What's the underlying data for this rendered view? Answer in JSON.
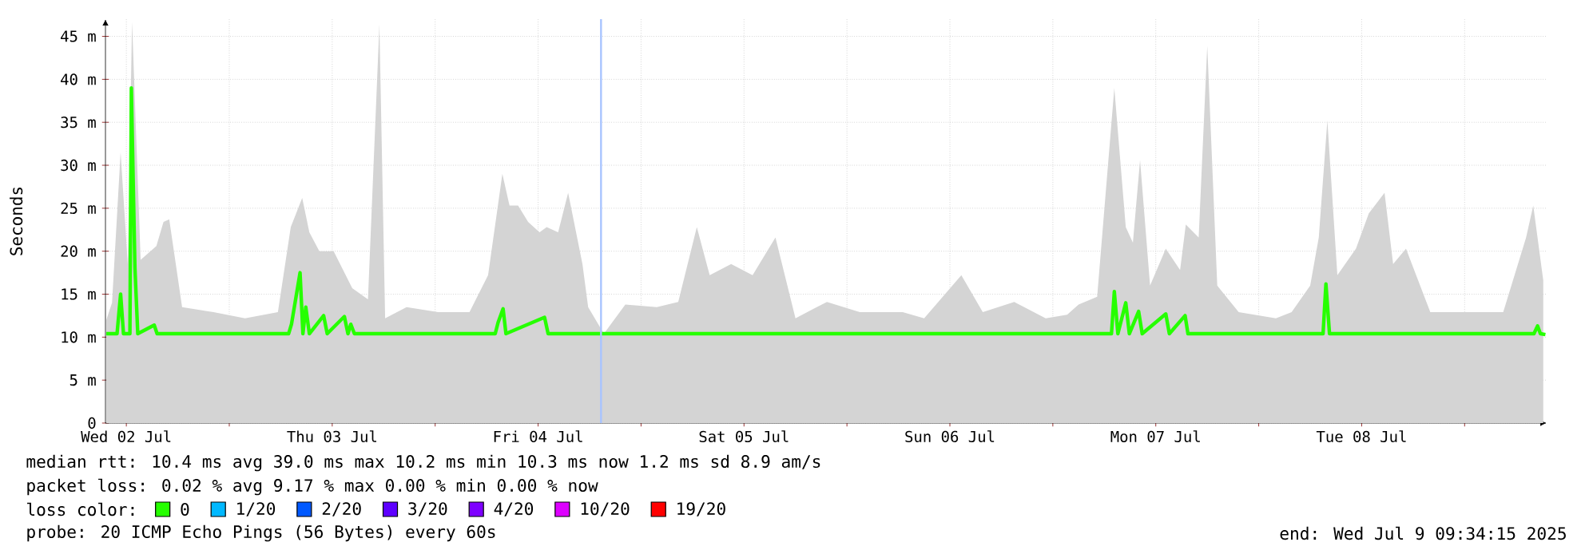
{
  "chart_data": {
    "type": "line",
    "ylabel": "Seconds",
    "legend_title": "loss color:",
    "legend": "bottom",
    "grid": true,
    "xlim": [
      "2025-07-02T09:34",
      "2025-07-09T09:34"
    ],
    "xticks": [
      {
        "value": "2025-07-02T12:00",
        "label": "Wed 02 Jul"
      },
      {
        "value": "2025-07-03T00:00",
        "label": null
      },
      {
        "value": "2025-07-03T12:00",
        "label": "Thu 03 Jul"
      },
      {
        "value": "2025-07-04T00:00",
        "label": null
      },
      {
        "value": "2025-07-04T12:00",
        "label": "Fri 04 Jul"
      },
      {
        "value": "2025-07-05T00:00",
        "label": null
      },
      {
        "value": "2025-07-05T12:00",
        "label": "Sat 05 Jul"
      },
      {
        "value": "2025-07-06T00:00",
        "label": null
      },
      {
        "value": "2025-07-06T12:00",
        "label": "Sun 06 Jul"
      },
      {
        "value": "2025-07-07T00:00",
        "label": null
      },
      {
        "value": "2025-07-07T12:00",
        "label": "Mon 07 Jul"
      },
      {
        "value": "2025-07-08T00:00",
        "label": null
      },
      {
        "value": "2025-07-08T12:00",
        "label": "Tue 08 Jul"
      },
      {
        "value": "2025-07-09T00:00",
        "label": null
      }
    ],
    "ylim": [
      0,
      47
    ],
    "yticks": [
      0,
      {
        "value": 5,
        "label": "5 m"
      },
      {
        "value": 10,
        "label": "10 m"
      },
      {
        "value": 15,
        "label": "15 m"
      },
      {
        "value": 20,
        "label": "20 m"
      },
      {
        "value": 25,
        "label": "25 m"
      },
      {
        "value": 30,
        "label": "30 m"
      },
      {
        "value": 35,
        "label": "35 m"
      },
      {
        "value": 40,
        "label": "40 m"
      },
      {
        "value": 45,
        "label": "45 m"
      }
    ],
    "ref_lines": [
      {
        "axis": "x",
        "value": "2025-07-04T19:20",
        "color": "#a8c4ff"
      }
    ],
    "series": [
      {
        "type": "area",
        "color": "#d4d4d4",
        "x": [
          "2025-07-02T09:40",
          "2025-07-02T10:20",
          "2025-07-02T11:20",
          "2025-07-02T12:10",
          "2025-07-02T12:40",
          "2025-07-02T13:40",
          "2025-07-02T15:30",
          "2025-07-02T16:20",
          "2025-07-02T17:00",
          "2025-07-02T18:30",
          "2025-07-02T22:10",
          "2025-07-03T01:50",
          "2025-07-03T05:40",
          "2025-07-03T07:10",
          "2025-07-03T08:30",
          "2025-07-03T09:20",
          "2025-07-03T10:30",
          "2025-07-03T12:10",
          "2025-07-03T14:20",
          "2025-07-03T16:10",
          "2025-07-03T17:30",
          "2025-07-03T18:10",
          "2025-07-03T20:40",
          "2025-07-04T00:20",
          "2025-07-04T04:00",
          "2025-07-04T06:10",
          "2025-07-04T07:50",
          "2025-07-04T08:40",
          "2025-07-04T09:40",
          "2025-07-04T10:50",
          "2025-07-04T12:10",
          "2025-07-04T13:00",
          "2025-07-04T14:20",
          "2025-07-04T15:30",
          "2025-07-04T17:10",
          "2025-07-04T17:50",
          "2025-07-04T19:40",
          "2025-07-04T22:10",
          "2025-07-05T01:50",
          "2025-07-05T04:20",
          "2025-07-05T06:30",
          "2025-07-05T08:00",
          "2025-07-05T10:30",
          "2025-07-05T13:00",
          "2025-07-05T15:40",
          "2025-07-05T18:00",
          "2025-07-05T21:40",
          "2025-07-06T01:30",
          "2025-07-06T06:30",
          "2025-07-06T09:00",
          "2025-07-06T13:20",
          "2025-07-06T15:50",
          "2025-07-06T19:30",
          "2025-07-06T23:10",
          "2025-07-07T01:40",
          "2025-07-07T03:00",
          "2025-07-07T05:10",
          "2025-07-07T07:10",
          "2025-07-07T08:30",
          "2025-07-07T09:20",
          "2025-07-07T10:10",
          "2025-07-07T11:20",
          "2025-07-07T13:10",
          "2025-07-07T14:50",
          "2025-07-07T15:30",
          "2025-07-07T17:00",
          "2025-07-07T18:00",
          "2025-07-07T19:10",
          "2025-07-07T21:40",
          "2025-07-08T02:00",
          "2025-07-08T03:50",
          "2025-07-08T06:00",
          "2025-07-08T07:00",
          "2025-07-08T08:00",
          "2025-07-08T09:10",
          "2025-07-08T11:20",
          "2025-07-08T12:50",
          "2025-07-08T14:40",
          "2025-07-08T15:40",
          "2025-07-08T17:10",
          "2025-07-08T20:00",
          "2025-07-08T23:50",
          "2025-07-09T04:30",
          "2025-07-09T07:10",
          "2025-07-09T08:00",
          "2025-07-09T09:10"
        ],
        "values": [
          12,
          14,
          31.5,
          18.5,
          46.7,
          19,
          20.6,
          23.4,
          23.7,
          13.5,
          12.9,
          12.2,
          12.9,
          22.8,
          26.2,
          22.2,
          20,
          20,
          15.7,
          14.4,
          46.4,
          12.2,
          13.5,
          12.9,
          12.9,
          17.2,
          29,
          25.3,
          25.3,
          23.4,
          22.2,
          22.8,
          22.2,
          26.8,
          18.5,
          13.5,
          10.4,
          13.8,
          13.5,
          14.1,
          22.8,
          17.2,
          18.5,
          17.2,
          21.6,
          12.2,
          14.1,
          12.9,
          12.9,
          12.2,
          17.2,
          12.9,
          14.1,
          12.2,
          12.6,
          13.8,
          14.7,
          39,
          22.8,
          21,
          30.6,
          16,
          20.3,
          17.8,
          23.1,
          21.6,
          43.9,
          16,
          12.9,
          12.2,
          12.9,
          16,
          21.6,
          35.2,
          17.2,
          20.3,
          24.4,
          26.8,
          18.5,
          20.3,
          12.9,
          12.9,
          12.9,
          21.6,
          25.3,
          16.6
        ]
      },
      {
        "name": "0",
        "color": "#26ff00",
        "x": [
          "2025-07-02T09:40",
          "2025-07-02T10:55",
          "2025-07-02T11:20",
          "2025-07-02T11:40",
          "2025-07-02T12:25",
          "2025-07-02T12:35",
          "2025-07-02T13:00",
          "2025-07-02T13:20",
          "2025-07-02T15:15",
          "2025-07-02T15:35",
          "2025-07-03T06:55",
          "2025-07-03T07:15",
          "2025-07-03T08:15",
          "2025-07-03T08:35",
          "2025-07-03T08:55",
          "2025-07-03T09:20",
          "2025-07-03T11:00",
          "2025-07-03T11:25",
          "2025-07-03T13:25",
          "2025-07-03T13:50",
          "2025-07-03T14:10",
          "2025-07-03T14:35",
          "2025-07-04T07:00",
          "2025-07-04T07:20",
          "2025-07-04T07:55",
          "2025-07-04T08:15",
          "2025-07-04T12:45",
          "2025-07-04T13:10",
          "2025-07-07T06:50",
          "2025-07-07T07:10",
          "2025-07-07T07:35",
          "2025-07-07T08:30",
          "2025-07-07T08:55",
          "2025-07-07T10:00",
          "2025-07-07T10:25",
          "2025-07-07T13:10",
          "2025-07-07T13:35",
          "2025-07-07T15:25",
          "2025-07-07T15:45",
          "2025-07-08T07:30",
          "2025-07-08T07:50",
          "2025-07-08T08:15",
          "2025-07-09T08:05",
          "2025-07-09T08:30",
          "2025-07-09T08:50",
          "2025-07-09T09:25"
        ],
        "values": [
          10.4,
          10.4,
          15,
          10.4,
          10.4,
          39,
          18.1,
          10.4,
          11.4,
          10.4,
          10.4,
          11.5,
          17.5,
          10.4,
          13.5,
          10.4,
          12.5,
          10.4,
          12.4,
          10.4,
          11.5,
          10.4,
          10.4,
          11.7,
          13.3,
          10.4,
          12.3,
          10.4,
          10.4,
          15.3,
          10.4,
          14,
          10.4,
          13,
          10.4,
          12.7,
          10.4,
          12.5,
          10.4,
          10.4,
          16.2,
          10.4,
          10.4,
          11.3,
          10.4,
          10.3
        ]
      },
      {
        "name": "1/20",
        "color": "#00b8ff"
      },
      {
        "name": "2/20",
        "color": "#0059ff"
      },
      {
        "name": "3/20",
        "color": "#5e00ff"
      },
      {
        "name": "4/20",
        "color": "#7e00ff"
      },
      {
        "name": "10/20",
        "color": "#dd00ff"
      },
      {
        "name": "19/20",
        "color": "#ff0000"
      }
    ],
    "annotations": [
      "median rtt: 10.4 ms avg 39.0 ms max 10.2 ms min 10.3 ms now 1.2 ms sd 8.9 am/s",
      "packet loss: 0.02 % avg 9.17 % max 0.00 % min 0.00 % now",
      "probe: 20 ICMP Echo Pings (56 Bytes) every 60s",
      "end: Wed Jul 9 09:34:15 2025"
    ]
  }
}
